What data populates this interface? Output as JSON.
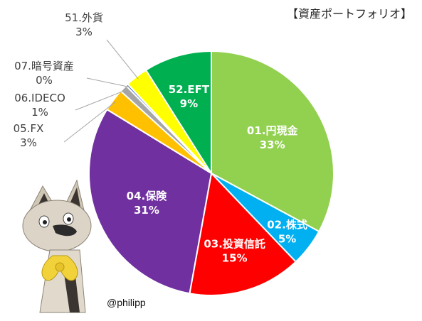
{
  "chart_data": {
    "type": "pie",
    "title": "【資産ポートフォリオ】",
    "slices": [
      {
        "name": "01.円現金",
        "value": 33,
        "label": "33%",
        "color": "#92D050",
        "text_color": "#ffffff"
      },
      {
        "name": "02.株式",
        "value": 5,
        "label": "5%",
        "color": "#00B0F0",
        "text_color": "#ffffff"
      },
      {
        "name": "03.投資信託",
        "value": 15,
        "label": "15%",
        "color": "#FF0000",
        "text_color": "#ffffff"
      },
      {
        "name": "04.保険",
        "value": 31,
        "label": "31%",
        "color": "#7030A0",
        "text_color": "#ffffff"
      },
      {
        "name": "05.FX",
        "value": 3,
        "label": "3%",
        "color": "#FFC000",
        "text_color": "#404040"
      },
      {
        "name": "06.IDECO",
        "value": 1,
        "label": "1%",
        "color": "#A5A5A5",
        "text_color": "#404040"
      },
      {
        "name": "07.暗号資産",
        "value": 0.3,
        "label": "0%",
        "color": "#4472C4",
        "text_color": "#404040"
      },
      {
        "name": "51.外貨",
        "value": 3,
        "label": "3%",
        "color": "#FFFF00",
        "text_color": "#404040"
      },
      {
        "name": "52.EFT",
        "value": 9,
        "label": "9%",
        "color": "#00B050",
        "text_color": "#ffffff"
      }
    ],
    "start_angle_deg": 0,
    "direction": "clockwise"
  },
  "credit": "@philipp",
  "illustration": {
    "subject": "ceramic cat figurine with yellow bow",
    "colors": [
      "#d9d2c4",
      "#2b2b2b",
      "#f2d23a"
    ]
  }
}
